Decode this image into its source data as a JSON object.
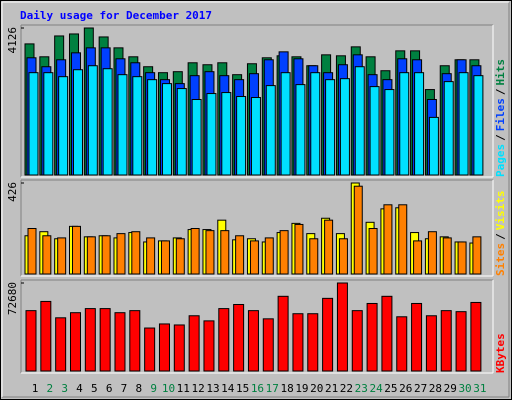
{
  "title": "Daily usage for December 2017",
  "legend_separator": "/",
  "categories": [
    "1",
    "2",
    "3",
    "4",
    "5",
    "6",
    "7",
    "8",
    "9",
    "10",
    "11",
    "12",
    "13",
    "14",
    "15",
    "16",
    "17",
    "18",
    "19",
    "20",
    "21",
    "22",
    "23",
    "24",
    "25",
    "26",
    "27",
    "28",
    "29",
    "30",
    "31"
  ],
  "category_colors": [
    "#000000",
    "#008040",
    "#008040",
    "#000000",
    "#000000",
    "#000000",
    "#000000",
    "#000000",
    "#008040",
    "#008040",
    "#000000",
    "#000000",
    "#000000",
    "#000000",
    "#000000",
    "#008040",
    "#008040",
    "#000000",
    "#000000",
    "#000000",
    "#000000",
    "#000000",
    "#008040",
    "#008040",
    "#000000",
    "#000000",
    "#000000",
    "#000000",
    "#000000",
    "#008040",
    "#008040"
  ],
  "chart_data": [
    {
      "type": "bar",
      "ylim": [
        0,
        4126
      ],
      "yticks": [
        4126
      ],
      "series": [
        {
          "name": "Hits",
          "color": "#008040",
          "values": [
            3680,
            3318,
            3903,
            3959,
            4126,
            3875,
            3569,
            3318,
            3039,
            2872,
            2900,
            3150,
            3095,
            3150,
            2816,
            3123,
            3290,
            3346,
            3318,
            3067,
            3373,
            3346,
            3597,
            3318,
            2927,
            3485,
            3485,
            2398,
            3067,
            3234,
            3234
          ]
        },
        {
          "name": "Files",
          "color": "#0040ff",
          "values": [
            3290,
            3039,
            3234,
            3429,
            3569,
            3569,
            3262,
            3150,
            2872,
            2676,
            2565,
            2788,
            2900,
            2788,
            2676,
            2844,
            3234,
            3457,
            3262,
            3067,
            2872,
            3095,
            3373,
            2816,
            2676,
            3262,
            3234,
            2119,
            2844,
            3234,
            3067
          ]
        },
        {
          "name": "Pages",
          "color": "#00e0ff",
          "values": [
            2872,
            2872,
            2760,
            2955,
            3067,
            2983,
            2816,
            2760,
            2676,
            2565,
            2426,
            2119,
            2286,
            2314,
            2203,
            2175,
            2509,
            2872,
            2537,
            2872,
            2676,
            2704,
            3039,
            2481,
            2398,
            2872,
            2872,
            1617,
            2621,
            2872,
            2788
          ]
        }
      ]
    },
    {
      "type": "bar",
      "ylim": [
        0,
        426
      ],
      "yticks": [
        426
      ],
      "series": [
        {
          "name": "Visits",
          "color": "#ffff00",
          "values": [
            179,
            198,
            165,
            223,
            174,
            179,
            169,
            194,
            150,
            155,
            169,
            208,
            208,
            252,
            160,
            165,
            150,
            194,
            237,
            189,
            261,
            189,
            426,
            242,
            305,
            310,
            194,
            165,
            174,
            150,
            145
          ]
        },
        {
          "name": "Sites",
          "color": "#ff8000",
          "values": [
            213,
            179,
            169,
            223,
            174,
            179,
            189,
            198,
            169,
            155,
            165,
            213,
            203,
            203,
            179,
            155,
            169,
            203,
            232,
            165,
            252,
            165,
            411,
            213,
            324,
            324,
            155,
            198,
            169,
            150,
            174
          ]
        }
      ]
    },
    {
      "type": "bar",
      "ylim": [
        0,
        72680
      ],
      "yticks": [
        72680
      ],
      "series": [
        {
          "name": "KBytes",
          "color": "#ff0000",
          "values": [
            49855,
            57460,
            43940,
            48165,
            51545,
            51545,
            48165,
            49855,
            35490,
            38870,
            38025,
            45630,
            41405,
            51545,
            54925,
            49855,
            43095,
            61685,
            47320,
            47320,
            59995,
            72680,
            49855,
            55770,
            61685,
            44785,
            55770,
            45630,
            49855,
            49010,
            56615
          ]
        }
      ]
    }
  ]
}
